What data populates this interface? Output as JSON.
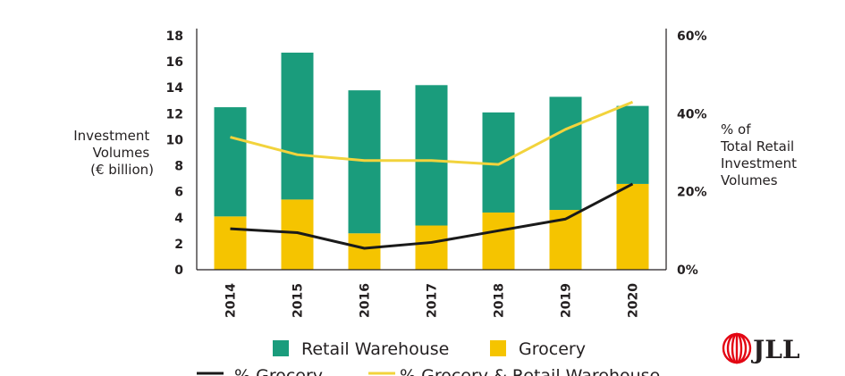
{
  "chart_data": {
    "type": "bar",
    "stacked": true,
    "categories": [
      "2014",
      "2015",
      "2016",
      "2017",
      "2018",
      "2019",
      "2020"
    ],
    "series": [
      {
        "name": "Grocery",
        "color": "#f5c400",
        "axis": "left",
        "values": [
          4.1,
          5.4,
          2.8,
          3.4,
          4.4,
          4.6,
          6.6
        ]
      },
      {
        "name": "Retail Warehouse",
        "color": "#1a9c7c",
        "axis": "left",
        "values": [
          8.4,
          11.3,
          11.0,
          10.8,
          7.7,
          8.7,
          6.0
        ]
      }
    ],
    "lines": [
      {
        "name": "% Grocery",
        "color": "#1a1a1a",
        "axis": "right",
        "values": [
          10.5,
          9.5,
          5.5,
          7.0,
          10.0,
          13.0,
          22.0
        ]
      },
      {
        "name": "% Grocery & Retail Warehouse",
        "color": "#f2d33c",
        "axis": "right",
        "values": [
          34,
          29.5,
          28,
          28,
          27,
          36,
          43
        ]
      }
    ],
    "y_left": {
      "label_lines": [
        "Investment",
        "Volumes",
        "(€ billion)"
      ],
      "ticks": [
        "0",
        "2",
        "4",
        "6",
        "8",
        "10",
        "12",
        "14",
        "16",
        "18"
      ],
      "ylim": [
        0,
        18
      ]
    },
    "y_right": {
      "label_lines": [
        "% of",
        "Total Retail",
        "Investment",
        "Volumes"
      ],
      "ticks": [
        "0%",
        "20%",
        "40%",
        "60%"
      ],
      "ylim": [
        0,
        60
      ]
    },
    "grid": false,
    "legend": {
      "placement": "bottom",
      "items": [
        "Retail Warehouse",
        "Grocery"
      ],
      "line_items": [
        "% Grocery",
        "% Grocery & Retail Warehouse"
      ]
    }
  },
  "logo": {
    "text": "JLL",
    "icon": "jll-flame-icon",
    "color": "#e30613"
  }
}
